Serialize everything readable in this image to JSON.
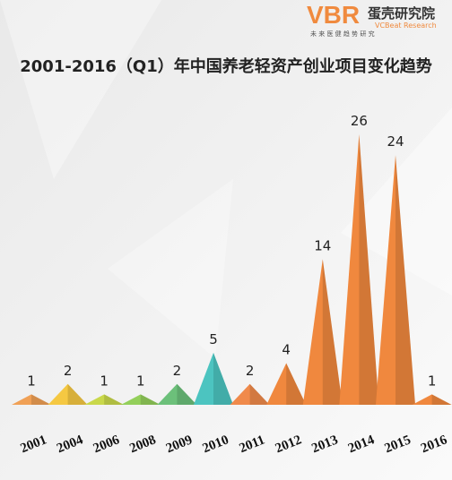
{
  "logo": {
    "mark": "VBR",
    "name": "蛋壳研究院",
    "tagline": "未 来 医 健 趋 势 研 究",
    "english": "VCBeat Research"
  },
  "chart_data": {
    "type": "triangle",
    "title": "2001-2016（Q1）年中国养老轻资产创业项目变化趋势",
    "categories": [
      "2001",
      "2004",
      "2006",
      "2008",
      "2009",
      "2010",
      "2011",
      "2012",
      "2013",
      "2014",
      "2015",
      "2016"
    ],
    "values": [
      1,
      2,
      1,
      1,
      2,
      5,
      2,
      4,
      14,
      26,
      24,
      1
    ],
    "colors": [
      "#f0a055",
      "#f5c842",
      "#c9d84a",
      "#93cf5a",
      "#6cc07a",
      "#4cc4c0",
      "#f08a4b",
      "#f0883e",
      "#f0883e",
      "#f0883e",
      "#f0883e",
      "#f0883e"
    ]
  }
}
